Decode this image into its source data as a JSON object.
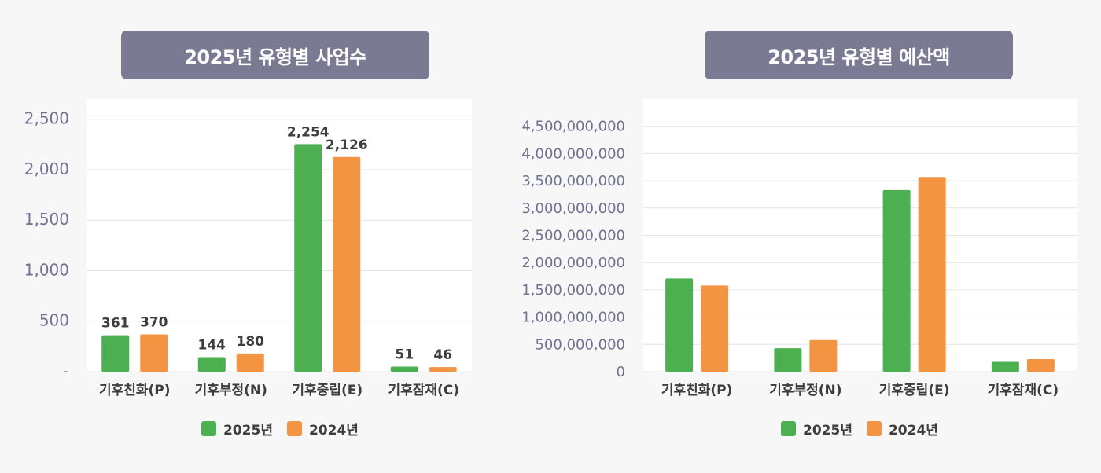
{
  "colors": {
    "series_2025": "#4caf50",
    "series_2024": "#f39442",
    "title_bg": "#7b7a93",
    "grid": "#e4e4e4",
    "axis_tick_text": "#707090",
    "category_text": "#3d3d3d",
    "value_label_text": "#3d3d3d"
  },
  "chart_data": [
    {
      "type": "bar",
      "title": "2025년 유형별 사업수",
      "categories": [
        "기후친화(P)",
        "기후부정(N)",
        "기후중립(E)",
        "기후잠재(C)"
      ],
      "series": [
        {
          "name": "2025년",
          "values": [
            361,
            144,
            2254,
            51
          ],
          "labels": [
            "361",
            "144",
            "2,254",
            "51"
          ]
        },
        {
          "name": "2024년",
          "values": [
            370,
            180,
            2126,
            46
          ],
          "labels": [
            "370",
            "180",
            "2,126",
            "46"
          ]
        }
      ],
      "yticks": [
        0,
        500,
        1000,
        1500,
        2000,
        2500
      ],
      "ytick_labels": [
        "-",
        "500",
        "1,000",
        "1,500",
        "2,000",
        "2,500"
      ],
      "ylim": [
        0,
        2700
      ],
      "grid": true,
      "legend_position": "bottom",
      "data_labels": true
    },
    {
      "type": "bar",
      "title": "2025년 유형별 예산액",
      "categories": [
        "기후친화(P)",
        "기후부정(N)",
        "기후중립(E)",
        "기후잠재(C)"
      ],
      "series": [
        {
          "name": "2025년",
          "values": [
            1710000000,
            430000000,
            3330000000,
            180000000
          ]
        },
        {
          "name": "2024년",
          "values": [
            1580000000,
            580000000,
            3570000000,
            230000000
          ]
        }
      ],
      "yticks": [
        0,
        500000000,
        1000000000,
        1500000000,
        2000000000,
        2500000000,
        3000000000,
        3500000000,
        4000000000,
        4500000000
      ],
      "ytick_labels": [
        "0",
        "500,000,000",
        "1,000,000,000",
        "1,500,000,000",
        "2,000,000,000",
        "2,500,000,000",
        "3,000,000,000",
        "3,500,000,000",
        "4,000,000,000",
        "4,500,000,000"
      ],
      "ylim": [
        0,
        5000000000
      ],
      "grid": true,
      "legend_position": "bottom",
      "data_labels": false
    }
  ]
}
